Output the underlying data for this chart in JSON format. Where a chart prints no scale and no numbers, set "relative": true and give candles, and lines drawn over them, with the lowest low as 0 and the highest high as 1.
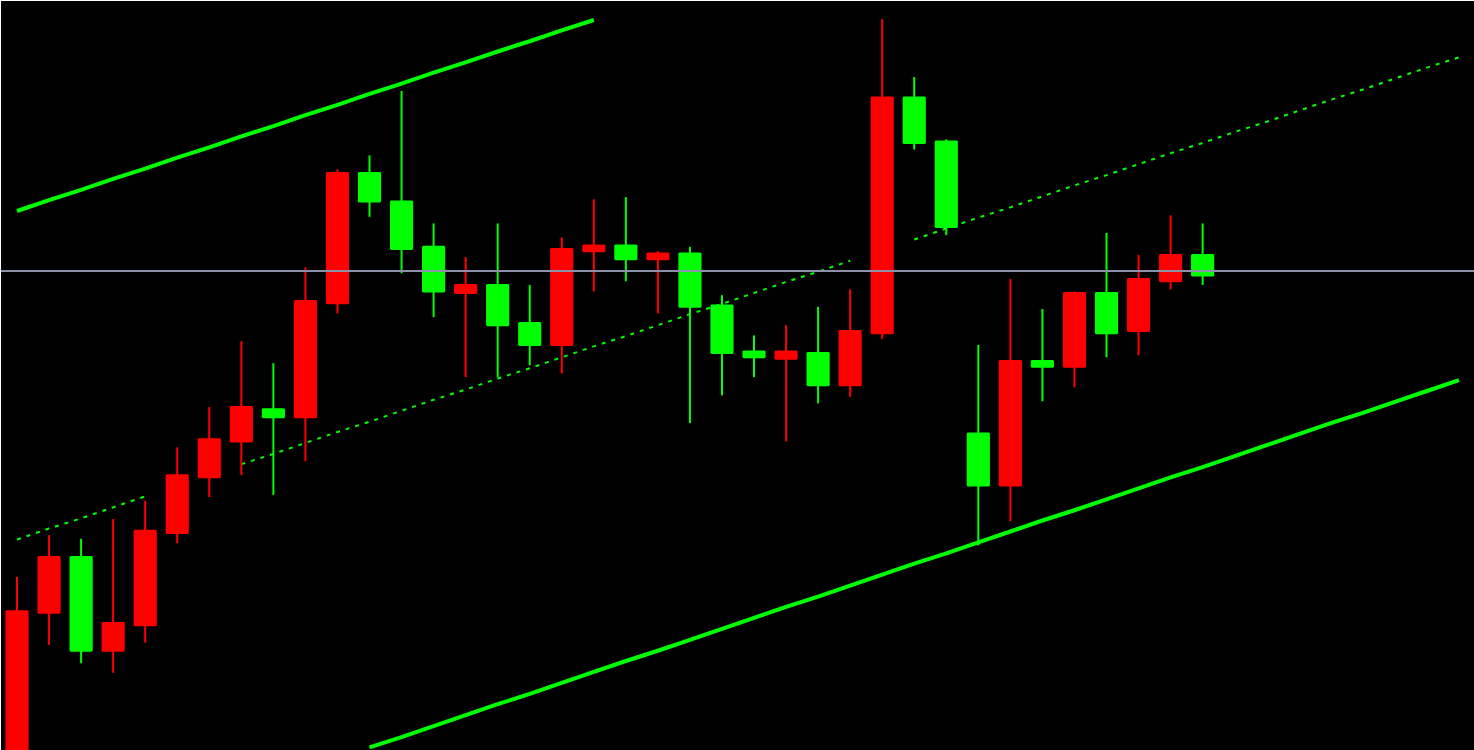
{
  "chart_data": {
    "type": "candlestick",
    "relative": true,
    "categories": [
      null,
      null,
      null,
      null,
      null,
      null,
      null,
      null,
      null,
      null,
      null,
      null,
      null,
      null,
      null,
      null,
      null,
      null,
      null,
      null,
      null,
      null,
      null,
      null,
      null,
      null,
      null,
      null,
      null,
      null,
      null,
      null,
      null,
      null,
      null,
      null,
      null,
      null,
      null,
      null,
      null,
      null,
      null,
      null,
      null,
      null
    ],
    "ohlc": [
      [
        0,
        0.238,
        0,
        0.191
      ],
      [
        0.189,
        0.295,
        0.145,
        0.265
      ],
      [
        0.265,
        0.29,
        0.12,
        0.137
      ],
      [
        0.137,
        0.317,
        0.107,
        0.175
      ],
      [
        0.172,
        0.342,
        0.148,
        0.301
      ],
      [
        0.298,
        0.415,
        0.284,
        0.377
      ],
      [
        0.374,
        0.47,
        0.347,
        0.426
      ],
      [
        0.423,
        0.56,
        0.377,
        0.47
      ],
      [
        0.467,
        0.53,
        0.35,
        0.456
      ],
      [
        0.456,
        0.661,
        0.396,
        0.615
      ],
      [
        0.612,
        0.795,
        0.598,
        0.79
      ],
      [
        0.79,
        0.814,
        0.73,
        0.751
      ],
      [
        0.751,
        0.902,
        0.653,
        0.686
      ],
      [
        0.689,
        0.721,
        0.593,
        0.628
      ],
      [
        0.626,
        0.675,
        0.511,
        0.637
      ],
      [
        0.637,
        0.721,
        0.511,
        0.582
      ],
      [
        0.585,
        0.637,
        0.527,
        0.555
      ],
      [
        0.555,
        0.702,
        0.516,
        0.686
      ],
      [
        0.683,
        0.754,
        0.628,
        0.691
      ],
      [
        0.691,
        0.757,
        0.642,
        0.672
      ],
      [
        0.672,
        0.683,
        0.598,
        0.68
      ],
      [
        0.68,
        0.689,
        0.448,
        0.607
      ],
      [
        0.609,
        0.623,
        0.486,
        0.544
      ],
      [
        0.546,
        0.568,
        0.511,
        0.538
      ],
      [
        0.536,
        0.582,
        0.423,
        0.546
      ],
      [
        0.544,
        0.607,
        0.475,
        0.5
      ],
      [
        0.5,
        0.631,
        0.484,
        0.574
      ],
      [
        0.571,
        1,
        0.563,
        0.893
      ],
      [
        0.893,
        0.921,
        0.822,
        0.831
      ],
      [
        0.833,
        0.836,
        0.705,
        0.716
      ],
      [
        0.434,
        0.555,
        0.281,
        0.363
      ],
      [
        0.363,
        0.645,
        0.314,
        0.533
      ],
      [
        0.533,
        0.604,
        0.478,
        0.525
      ],
      [
        0.525,
        0.628,
        0.497,
        0.626
      ],
      [
        0.626,
        0.708,
        0.538,
        0.571
      ],
      [
        0.574,
        0.678,
        0.541,
        0.645
      ],
      [
        0.642,
        0.732,
        0.631,
        0.678
      ],
      [
        0.678,
        0.721,
        0.637,
        0.65
      ],
      null,
      null,
      null,
      null,
      null,
      null,
      null,
      null
    ],
    "colors": [
      "#ff0000",
      "#ff0000",
      "#00ff00",
      "#ff0000",
      "#ff0000",
      "#ff0000",
      "#ff0000",
      "#ff0000",
      "#00ff00",
      "#ff0000",
      "#ff0000",
      "#00ff00",
      "#00ff00",
      "#00ff00",
      "#ff0000",
      "#00ff00",
      "#00ff00",
      "#ff0000",
      "#ff0000",
      "#00ff00",
      "#ff0000",
      "#00ff00",
      "#00ff00",
      "#00ff00",
      "#ff0000",
      "#00ff00",
      "#ff0000",
      "#ff0000",
      "#00ff00",
      "#00ff00",
      "#00ff00",
      "#ff0000",
      "#00ff00",
      "#ff0000",
      "#00ff00",
      "#ff0000",
      "#ff0000",
      "#00ff00",
      null,
      null,
      null,
      null,
      null,
      null,
      null,
      null
    ],
    "series": [
      {
        "type": "line",
        "values": [
          0.738,
          0.753,
          0.767,
          0.782,
          0.796,
          0.811,
          0.825,
          0.84,
          0.854,
          0.869,
          0.883,
          0.898,
          0.912,
          0.927,
          0.941,
          0.956,
          0.97,
          0.985,
          0.999,
          null,
          null,
          null,
          null,
          null,
          null,
          null,
          null,
          null,
          null,
          null,
          null,
          null,
          null,
          null,
          null,
          null,
          null,
          null,
          null,
          null,
          null,
          null,
          null,
          null,
          null,
          null
        ],
        "color": "#00ff00",
        "line_style": "solid"
      },
      {
        "type": "line",
        "values": [
          0.289,
          0.304,
          0.318,
          0.333,
          0.348,
          null,
          null,
          0.392,
          0.406,
          0.421,
          0.436,
          0.45,
          0.465,
          0.48,
          0.494,
          0.509,
          0.523,
          0.538,
          0.553,
          0.567,
          0.582,
          0.597,
          0.611,
          0.626,
          0.641,
          0.655,
          0.67,
          null,
          0.699,
          0.714,
          0.729,
          0.743,
          0.758,
          0.773,
          0.787,
          0.802,
          0.817,
          0.831,
          0.846,
          0.86,
          0.875,
          0.89,
          0.904,
          0.919,
          0.934,
          0.948
        ],
        "color": "#00ff00",
        "line_style": "dotted"
      },
      {
        "type": "line",
        "values": [
          null,
          null,
          null,
          null,
          null,
          null,
          null,
          null,
          null,
          null,
          null,
          0.005,
          0.019,
          0.034,
          0.049,
          0.064,
          0.078,
          0.093,
          0.108,
          0.123,
          0.137,
          0.152,
          0.167,
          0.182,
          0.197,
          0.211,
          0.226,
          0.241,
          0.256,
          0.27,
          0.285,
          0.3,
          0.315,
          0.329,
          0.344,
          0.359,
          0.374,
          0.388,
          0.403,
          0.418,
          0.433,
          0.448,
          0.462,
          0.477,
          0.492,
          0.507
        ],
        "color": "#00ff00",
        "line_style": "solid"
      }
    ],
    "ref_lines": [
      {
        "axis": "y",
        "value": 0.656,
        "color": "#8c90a8"
      }
    ]
  }
}
